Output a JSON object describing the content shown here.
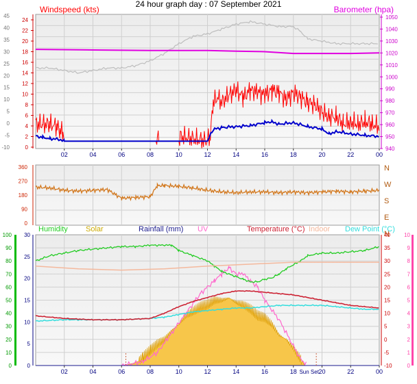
{
  "title": "24 hour graph day : 07 September 2021",
  "colors": {
    "wind": "#ff0000",
    "gust": "#ff0000",
    "avg_wind": "#0000cc",
    "gust_grey": "#bdbdbd",
    "baro": "#e000e0",
    "wind_dir": "#d2781e",
    "humidity": "#22cc22",
    "solar": "#f5b400",
    "solar_fill": "#f7c64a",
    "rain": "#1a1a8c",
    "uv": "#ff66cc",
    "temperature": "#cc2233",
    "indoor": "#f4b89c",
    "dewpoint": "#33dddd",
    "left_axis_green": "#00bb00",
    "right_axis_pink": "#ff44aa"
  },
  "x_ticks": [
    "02",
    "04",
    "06",
    "08",
    "10",
    "12",
    "14",
    "16",
    "18",
    "20",
    "22",
    "00"
  ],
  "chart_data": [
    {
      "id": "wind",
      "type": "line",
      "title": "",
      "left_label": "Windspeed (kts)",
      "right_label": "Barometer (hpa)",
      "y_left_ticks": [
        "24",
        "22",
        "20",
        "18",
        "16",
        "14",
        "12",
        "10",
        "8",
        "6",
        "4",
        "2",
        "0"
      ],
      "y_right_ticks": [
        "1050",
        "1040",
        "1030",
        "1020",
        "1010",
        "1000",
        "990",
        "980",
        "970",
        "960",
        "950",
        "940"
      ],
      "y_outer_ticks": [
        "45",
        "40",
        "35",
        "30",
        "25",
        "20",
        "15",
        "10",
        "5",
        "0",
        "-5",
        "-10"
      ],
      "ylim_left": [
        0,
        24
      ],
      "ylim_right": [
        940,
        1050
      ],
      "series": [
        {
          "key": "gust",
          "x": [
            0.0,
            0.5,
            1.0,
            1.5,
            1.7,
            1.9,
            2.0,
            8.4,
            8.5,
            8.6,
            10.0,
            10.1,
            12.0,
            12.2,
            12.4,
            12.7,
            13.0,
            13.5,
            14.0,
            14.5,
            15.0,
            15.5,
            16.0,
            16.5,
            17.0,
            17.5,
            18.0,
            18.5,
            19.0,
            19.5,
            20.0,
            20.5,
            21.0,
            21.5,
            22.0,
            22.5,
            23.0,
            23.5,
            24.0
          ],
          "y": [
            3.5,
            3.5,
            3.5,
            3.0,
            2.0,
            2.0,
            0,
            0,
            1.0,
            0,
            0,
            1.0,
            0,
            1.0,
            8.0,
            9.0,
            8.0,
            9.5,
            10.5,
            9.0,
            10.5,
            10.0,
            9.5,
            10.5,
            10.0,
            8.5,
            10.0,
            9.0,
            8.0,
            7.5,
            6.0,
            5.0,
            5.0,
            3.5,
            4.0,
            3.5,
            4.0,
            3.5,
            3.0
          ]
        },
        {
          "key": "avg_wind",
          "x": [
            0.0,
            0.5,
            1.0,
            1.5,
            2.0,
            4.0,
            8.0,
            12.0,
            12.3,
            12.5,
            13.0,
            14.0,
            15.0,
            16.0,
            16.5,
            17.0,
            18.0,
            19.0,
            20.0,
            20.5,
            21.0,
            22.0,
            23.0,
            24.0
          ],
          "y": [
            1.0,
            0.8,
            0.5,
            0.5,
            0,
            0,
            0,
            0,
            2.0,
            2.5,
            2.8,
            3.0,
            3.2,
            3.8,
            4.0,
            3.5,
            3.8,
            3.0,
            2.5,
            1.5,
            2.0,
            1.5,
            1.2,
            1.0
          ]
        },
        {
          "key": "gust_grey",
          "x": [
            0.0,
            1.0,
            2.0,
            3.0,
            4.0,
            5.0,
            6.0,
            7.0,
            8.0,
            9.0,
            10.0,
            11.0,
            12.0,
            13.0,
            14.0,
            15.0,
            16.0,
            17.0,
            18.0,
            18.5,
            19.0,
            20.0,
            21.0,
            22.0,
            23.0,
            24.0
          ],
          "y": [
            15.0,
            15.0,
            14.5,
            14.0,
            14.5,
            15.0,
            15.0,
            15.5,
            16.5,
            18.0,
            20.0,
            21.5,
            22.0,
            23.0,
            24.0,
            24.5,
            24.0,
            23.5,
            23.5,
            22.5,
            21.0,
            20.5,
            20.0,
            20.0,
            20.0,
            20.0
          ]
        },
        {
          "key": "baro",
          "x": [
            0,
            4,
            8,
            12,
            14,
            16,
            18,
            20,
            22,
            24
          ],
          "y": [
            1023,
            1022.5,
            1022,
            1022,
            1021.5,
            1021,
            1019.5,
            1019.5,
            1019.5,
            1020
          ]
        }
      ]
    },
    {
      "id": "direction",
      "type": "line",
      "title": "",
      "y_left_ticks": [
        "360",
        "270",
        "180",
        "90",
        "0"
      ],
      "y_right_ticks": [
        "N",
        "W",
        "S",
        "E",
        "N"
      ],
      "ylim": [
        0,
        360
      ],
      "series": [
        {
          "key": "wind_dir",
          "x": [
            0,
            1,
            2,
            3,
            4,
            5,
            6,
            7,
            8,
            8.5,
            9,
            10,
            11,
            12,
            13,
            14,
            15,
            16,
            17,
            18,
            19,
            20,
            21,
            22,
            23,
            24
          ],
          "y": [
            230,
            225,
            210,
            205,
            210,
            215,
            160,
            165,
            170,
            240,
            240,
            235,
            225,
            210,
            200,
            195,
            200,
            200,
            195,
            200,
            195,
            200,
            205,
            200,
            205,
            210
          ]
        }
      ]
    },
    {
      "id": "climate",
      "type": "line",
      "title": "",
      "labels": [
        "Humidity",
        "Solar",
        "Rainfall (mm)",
        "UV",
        "Temperature (°C)",
        "Indoor",
        "Dew Point (°C)"
      ],
      "y_left_outer_ticks": [
        "100",
        "90",
        "80",
        "70",
        "60",
        "50",
        "40",
        "30",
        "20",
        "10",
        "0"
      ],
      "y_left_inner_ticks": [
        "30",
        "25",
        "20",
        "15",
        "10",
        "5",
        "0"
      ],
      "y_right_inner_ticks": [
        "40",
        "35",
        "30",
        "25",
        "20",
        "15",
        "10",
        "5",
        "0",
        "-5",
        "-10"
      ],
      "y_right_outer_ticks": [
        "10",
        "9",
        "8",
        "7",
        "6",
        "5",
        "4",
        "3",
        "2",
        "1",
        "0"
      ],
      "annotation": "Sun Set",
      "series": [
        {
          "key": "humidity",
          "x": [
            0,
            1,
            2,
            3,
            4,
            5,
            6,
            7,
            8,
            9,
            9.5,
            10,
            11,
            12,
            12.5,
            13,
            13.5,
            14,
            14.5,
            15,
            15.5,
            16,
            16.5,
            17,
            17.5,
            18,
            18.5,
            19,
            20,
            21,
            22,
            23,
            24
          ],
          "y": [
            80,
            84,
            86,
            88,
            89,
            90,
            91,
            91,
            92,
            92,
            92,
            88,
            84,
            80,
            76,
            72,
            70,
            68,
            66,
            64,
            64,
            66,
            67,
            70,
            74,
            77,
            80,
            84,
            86,
            86,
            87,
            88,
            91
          ]
        },
        {
          "key": "temperature",
          "x": [
            0,
            2,
            4,
            6,
            8,
            9,
            10,
            11,
            12,
            13,
            14,
            15,
            16,
            17,
            18,
            19,
            20,
            21,
            22,
            23,
            24
          ],
          "y": [
            9.0,
            8.0,
            7.5,
            7.5,
            8.0,
            10.0,
            12.5,
            14.5,
            16.0,
            17.5,
            18.5,
            18.5,
            18.0,
            17.5,
            17.0,
            16.0,
            15.0,
            14.0,
            13.0,
            12.5,
            12.0
          ]
        },
        {
          "key": "dewpoint",
          "x": [
            0,
            2,
            4,
            6,
            8,
            9,
            10,
            11,
            12,
            13,
            14,
            15,
            16,
            17,
            18,
            19,
            20,
            21,
            22,
            23,
            24
          ],
          "y": [
            7.0,
            7.5,
            7.5,
            7.5,
            8.0,
            8.5,
            9.5,
            10.5,
            11.0,
            11.5,
            12.0,
            12.0,
            12.5,
            13.0,
            13.0,
            13.0,
            13.0,
            12.5,
            12.0,
            11.5,
            11.5
          ]
        },
        {
          "key": "indoor",
          "x": [
            0,
            3,
            6,
            9,
            12,
            14,
            16,
            18,
            20,
            22,
            24
          ],
          "y": [
            28.0,
            27.0,
            26.5,
            27.0,
            28.0,
            28.5,
            29.0,
            29.5,
            29.5,
            29.5,
            29.5
          ]
        },
        {
          "key": "solar",
          "x": [
            6.2,
            6.8,
            7.2,
            7.5,
            8,
            8.5,
            9,
            9.5,
            10,
            10.5,
            11,
            11.5,
            12,
            12.5,
            13,
            13.5,
            14,
            14.5,
            15,
            15.5,
            16,
            16.5,
            17,
            17.5,
            18,
            18.5,
            18.8
          ],
          "y": [
            0,
            0.5,
            1.0,
            2.0,
            3.5,
            5.0,
            6.0,
            8.0,
            9.5,
            11.5,
            12.5,
            13.5,
            14.0,
            15.0,
            15.0,
            15.5,
            14.5,
            14.0,
            13.0,
            11.5,
            11.0,
            9.5,
            7.0,
            6.0,
            4.0,
            1.5,
            0
          ]
        },
        {
          "key": "uv",
          "x": [
            6.0,
            7.5,
            8.5,
            9.5,
            10.5,
            11.5,
            12.5,
            13.0,
            13.5,
            14.0,
            14.5,
            15.0,
            15.5,
            16.0,
            17.0,
            18.0,
            18.5,
            19.0
          ],
          "y": [
            0,
            0.3,
            1.0,
            2.5,
            4.0,
            5.5,
            6.5,
            7.0,
            7.5,
            7.0,
            7.0,
            6.5,
            6.0,
            5.0,
            3.5,
            1.5,
            0.5,
            0
          ]
        },
        {
          "key": "rain",
          "x": [
            0,
            24
          ],
          "y": [
            0,
            0
          ]
        }
      ]
    }
  ]
}
